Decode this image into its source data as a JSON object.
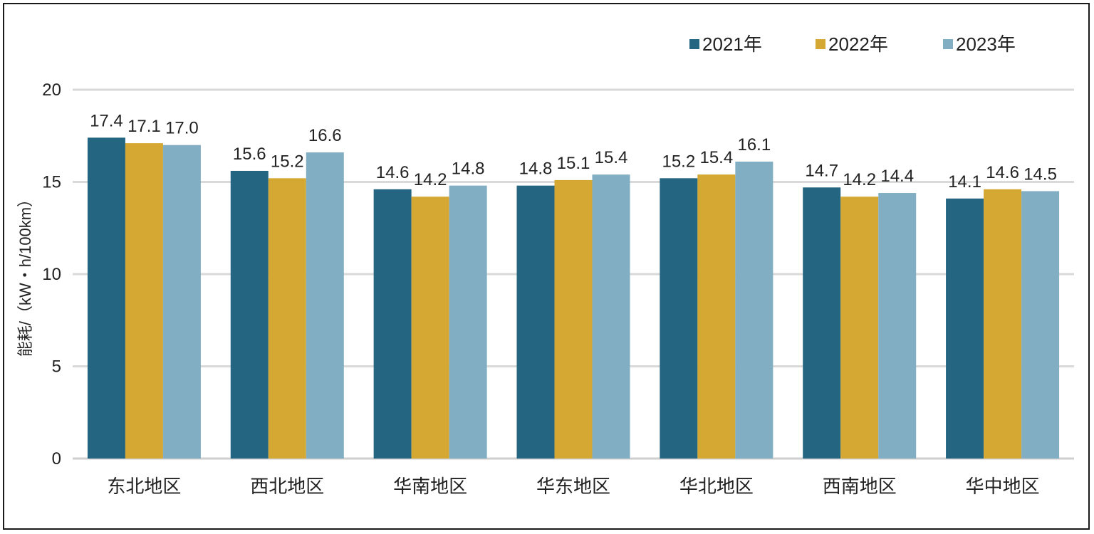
{
  "chart_data": {
    "type": "bar",
    "title": "",
    "xlabel": "",
    "ylabel": "能耗/（kW・h/100km）",
    "ylim": [
      0,
      20
    ],
    "yticks": [
      0,
      5,
      10,
      15,
      20
    ],
    "grid": true,
    "legend_position": "top-right",
    "categories": [
      "东北地区",
      "西北地区",
      "华南地区",
      "华东地区",
      "华北地区",
      "西南地区",
      "华中地区"
    ],
    "series": [
      {
        "name": "2021年",
        "color": "#246582",
        "values": [
          17.4,
          15.6,
          14.6,
          14.8,
          15.2,
          14.7,
          14.1
        ],
        "labels": [
          "17.4",
          "15.6",
          "14.6",
          "14.8",
          "15.2",
          "14.7",
          "14.1"
        ]
      },
      {
        "name": "2022年",
        "color": "#D4A833",
        "values": [
          17.1,
          15.2,
          14.2,
          15.1,
          15.4,
          14.2,
          14.6
        ],
        "labels": [
          "17.1",
          "15.2",
          "14.2",
          "15.1",
          "15.4",
          "14.2",
          "14.6"
        ]
      },
      {
        "name": "2023年",
        "color": "#82AEC3",
        "values": [
          17.0,
          16.6,
          14.8,
          15.4,
          16.1,
          14.4,
          14.5
        ],
        "labels": [
          "17.0",
          "16.6",
          "14.8",
          "15.4",
          "16.1",
          "14.4",
          "14.5"
        ]
      }
    ]
  }
}
